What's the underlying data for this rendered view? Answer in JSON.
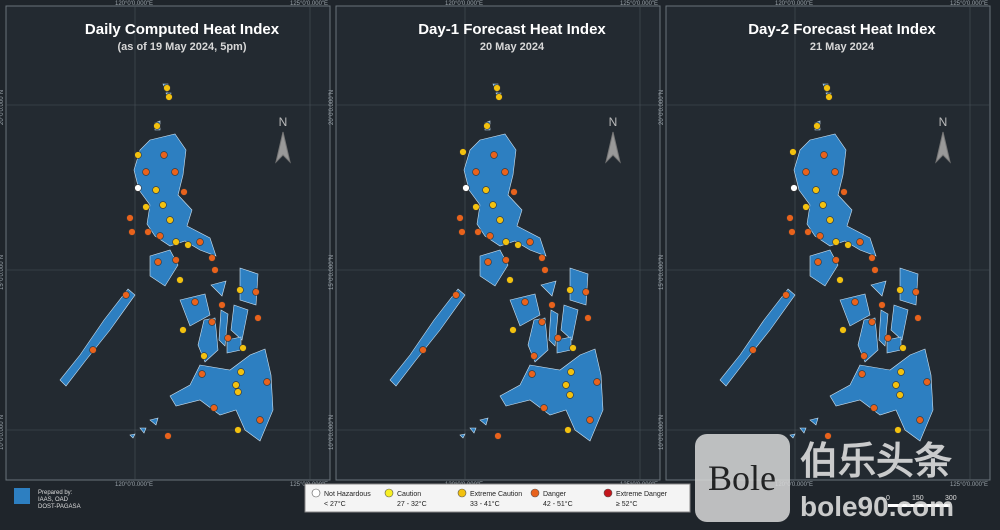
{
  "panels": [
    {
      "title": "Daily Computed Heat Index",
      "subtitle": "(as of 19 May 2024, 5pm)"
    },
    {
      "title": "Day-1 Forecast Heat Index",
      "subtitle": "20 May 2024"
    },
    {
      "title": "Day-2 Forecast Heat Index",
      "subtitle": "21 May 2024"
    }
  ],
  "north": "N",
  "longitude_labels": [
    "120°0'0.000\"E",
    "125°0'0.000\"E"
  ],
  "latitude_labels": [
    "20°0'0.000\"N",
    "15°0'0.000\"N",
    "10°0'0.000\"N",
    "5°0'0.000\"N"
  ],
  "legend": [
    {
      "label": "Not Hazardous",
      "range": "< 27°C",
      "color": "#ffffff"
    },
    {
      "label": "Caution",
      "range": "27 - 32°C",
      "color": "#f7ef24"
    },
    {
      "label": "Extreme Caution",
      "range": "33 - 41°C",
      "color": "#f2c10f"
    },
    {
      "label": "Danger",
      "range": "42 - 51°C",
      "color": "#e8621c"
    },
    {
      "label": "Extreme Danger",
      "range": "≥ 52°C",
      "color": "#c4161c"
    }
  ],
  "credit": [
    "Prepared by:",
    "IAAS, OAD",
    "DOST-PAGASA"
  ],
  "scale": [
    "0",
    "150",
    "300"
  ],
  "watermark": {
    "logo": "Bole",
    "name": "伯乐头条",
    "url": "bole90.com"
  }
}
